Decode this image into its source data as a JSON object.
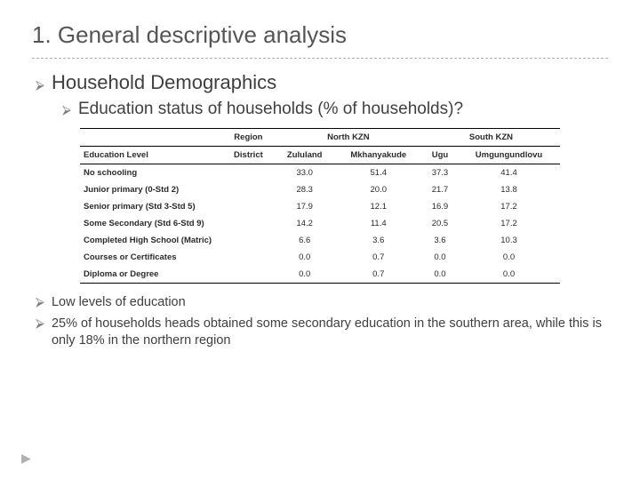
{
  "title": "1. General descriptive analysis",
  "h1": "Household Demographics",
  "h2": "Education status of households (% of households)?",
  "table": {
    "region_label": "Region",
    "group_north": "North KZN",
    "group_south": "South KZN",
    "col0": "Education Level",
    "col1": "District",
    "col2": "Zululand",
    "col3": "Mkhanyakude",
    "col4": "Ugu",
    "col5": "Umgungundlovu",
    "rows": [
      {
        "label": "No schooling",
        "v1": "33.0",
        "v2": "51.4",
        "v3": "37.3",
        "v4": "41.4"
      },
      {
        "label": "Junior primary (0-Std 2)",
        "v1": "28.3",
        "v2": "20.0",
        "v3": "21.7",
        "v4": "13.8"
      },
      {
        "label": "Senior primary (Std 3-Std 5)",
        "v1": "17.9",
        "v2": "12.1",
        "v3": "16.9",
        "v4": "17.2"
      },
      {
        "label": "Some Secondary (Std 6-Std 9)",
        "v1": "14.2",
        "v2": "11.4",
        "v3": "20.5",
        "v4": "17.2"
      },
      {
        "label": "Completed High School (Matric)",
        "v1": "6.6",
        "v2": "3.6",
        "v3": "3.6",
        "v4": "10.3"
      },
      {
        "label": "Courses or Certificates",
        "v1": "0.0",
        "v2": "0.7",
        "v3": "0.0",
        "v4": "0.0"
      },
      {
        "label": "Diploma or Degree",
        "v1": "0.0",
        "v2": "0.7",
        "v3": "0.0",
        "v4": "0.0"
      }
    ]
  },
  "notes": {
    "n1": "Low levels of education",
    "n2": "25% of households heads obtained some secondary education in the southern area, while this is only 18% in the northern region"
  },
  "style": {
    "text_color": "#3f3f3f",
    "border_color": "#000000",
    "dash_color": "#b0b0b0",
    "bg": "#ffffff"
  }
}
